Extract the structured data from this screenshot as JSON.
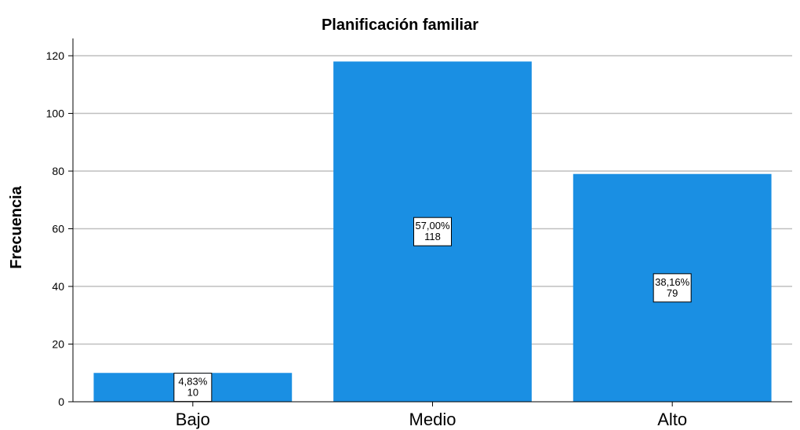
{
  "chart_data": {
    "type": "bar",
    "title": "Planificación familiar",
    "xlabel": "",
    "ylabel": "Frecuencia",
    "categories": [
      "Bajo",
      "Medio",
      "Alto"
    ],
    "values": [
      10,
      118,
      79
    ],
    "percent_labels": [
      "4,83%",
      "57,00%",
      "38,16%"
    ],
    "count_labels": [
      "10",
      "118",
      "79"
    ],
    "yticks": [
      "0",
      "20",
      "40",
      "60",
      "80",
      "100",
      "120"
    ],
    "ylim": [
      0,
      126
    ],
    "grid": true,
    "legend": "none",
    "colors": {
      "bar": "#1a8fe3",
      "grid": "#bfbfbf",
      "axis": "#000000",
      "label_box_bg": "#ffffff"
    }
  }
}
